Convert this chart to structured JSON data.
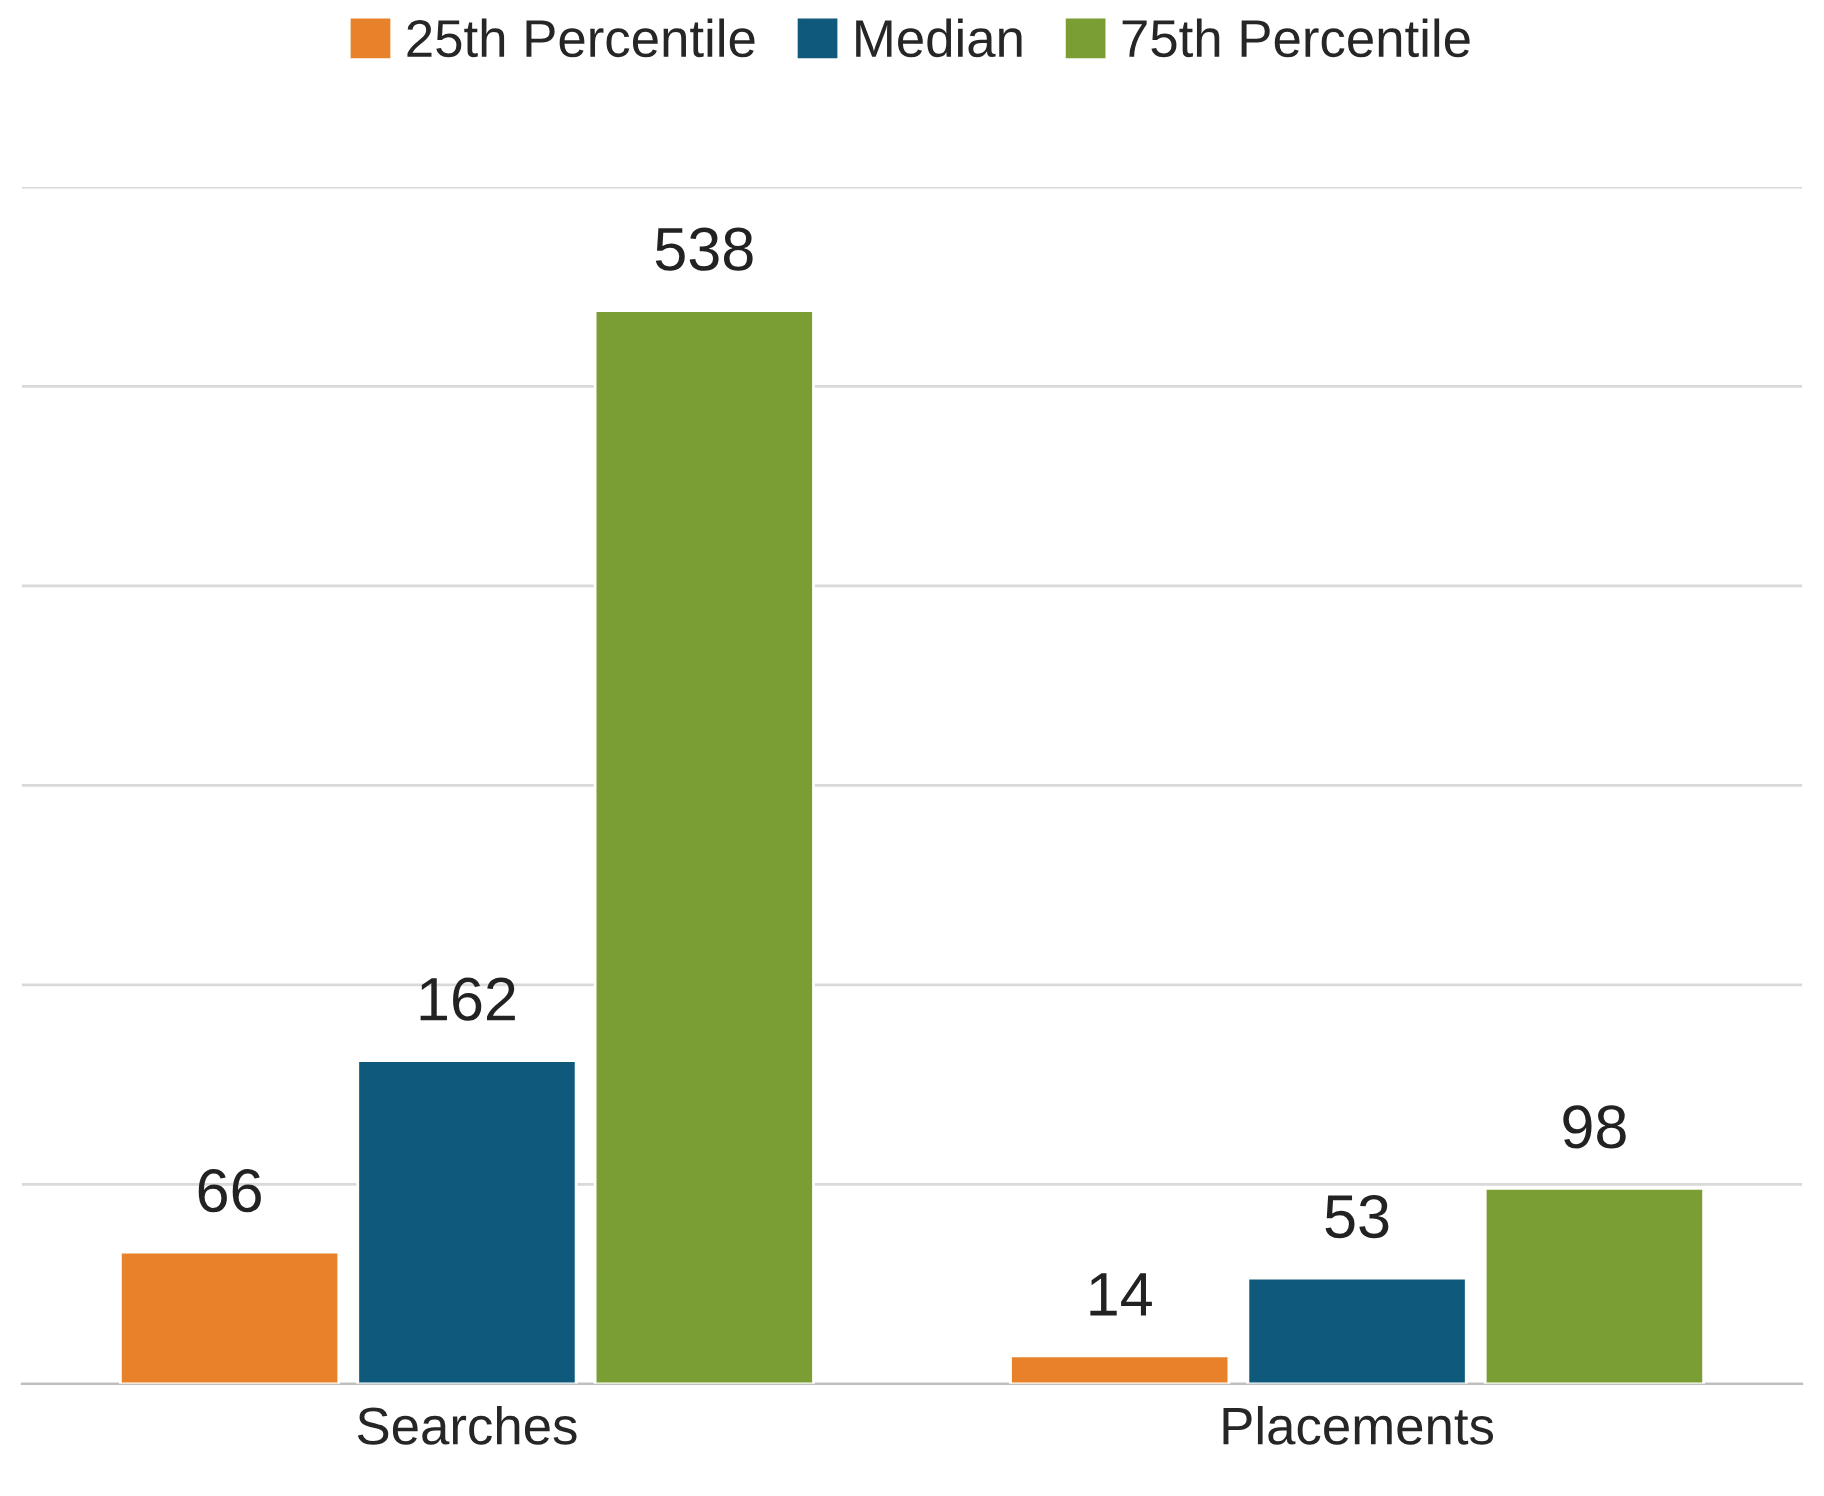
{
  "chart_data": {
    "type": "bar",
    "categories": [
      "Searches",
      "Placements"
    ],
    "series": [
      {
        "name": "25th Percentile",
        "color": "#e8822a",
        "values": [
          66,
          14
        ]
      },
      {
        "name": "Median",
        "color": "#0f5a7c",
        "values": [
          162,
          53
        ]
      },
      {
        "name": "75th Percentile",
        "color": "#7a9e34",
        "values": [
          538,
          98
        ]
      }
    ],
    "ylim": [
      0,
      600
    ],
    "yticks": [
      {
        "value": 0,
        "label": null
      },
      {
        "value": 100,
        "label": null
      },
      {
        "value": 200,
        "label": null
      },
      {
        "value": 300,
        "label": null
      },
      {
        "value": 400,
        "label": null
      },
      {
        "value": 500,
        "label": null
      },
      {
        "value": 600,
        "label": null
      }
    ],
    "tick_labels": "x",
    "grid": "y",
    "legend": "top",
    "data_labels": true
  }
}
